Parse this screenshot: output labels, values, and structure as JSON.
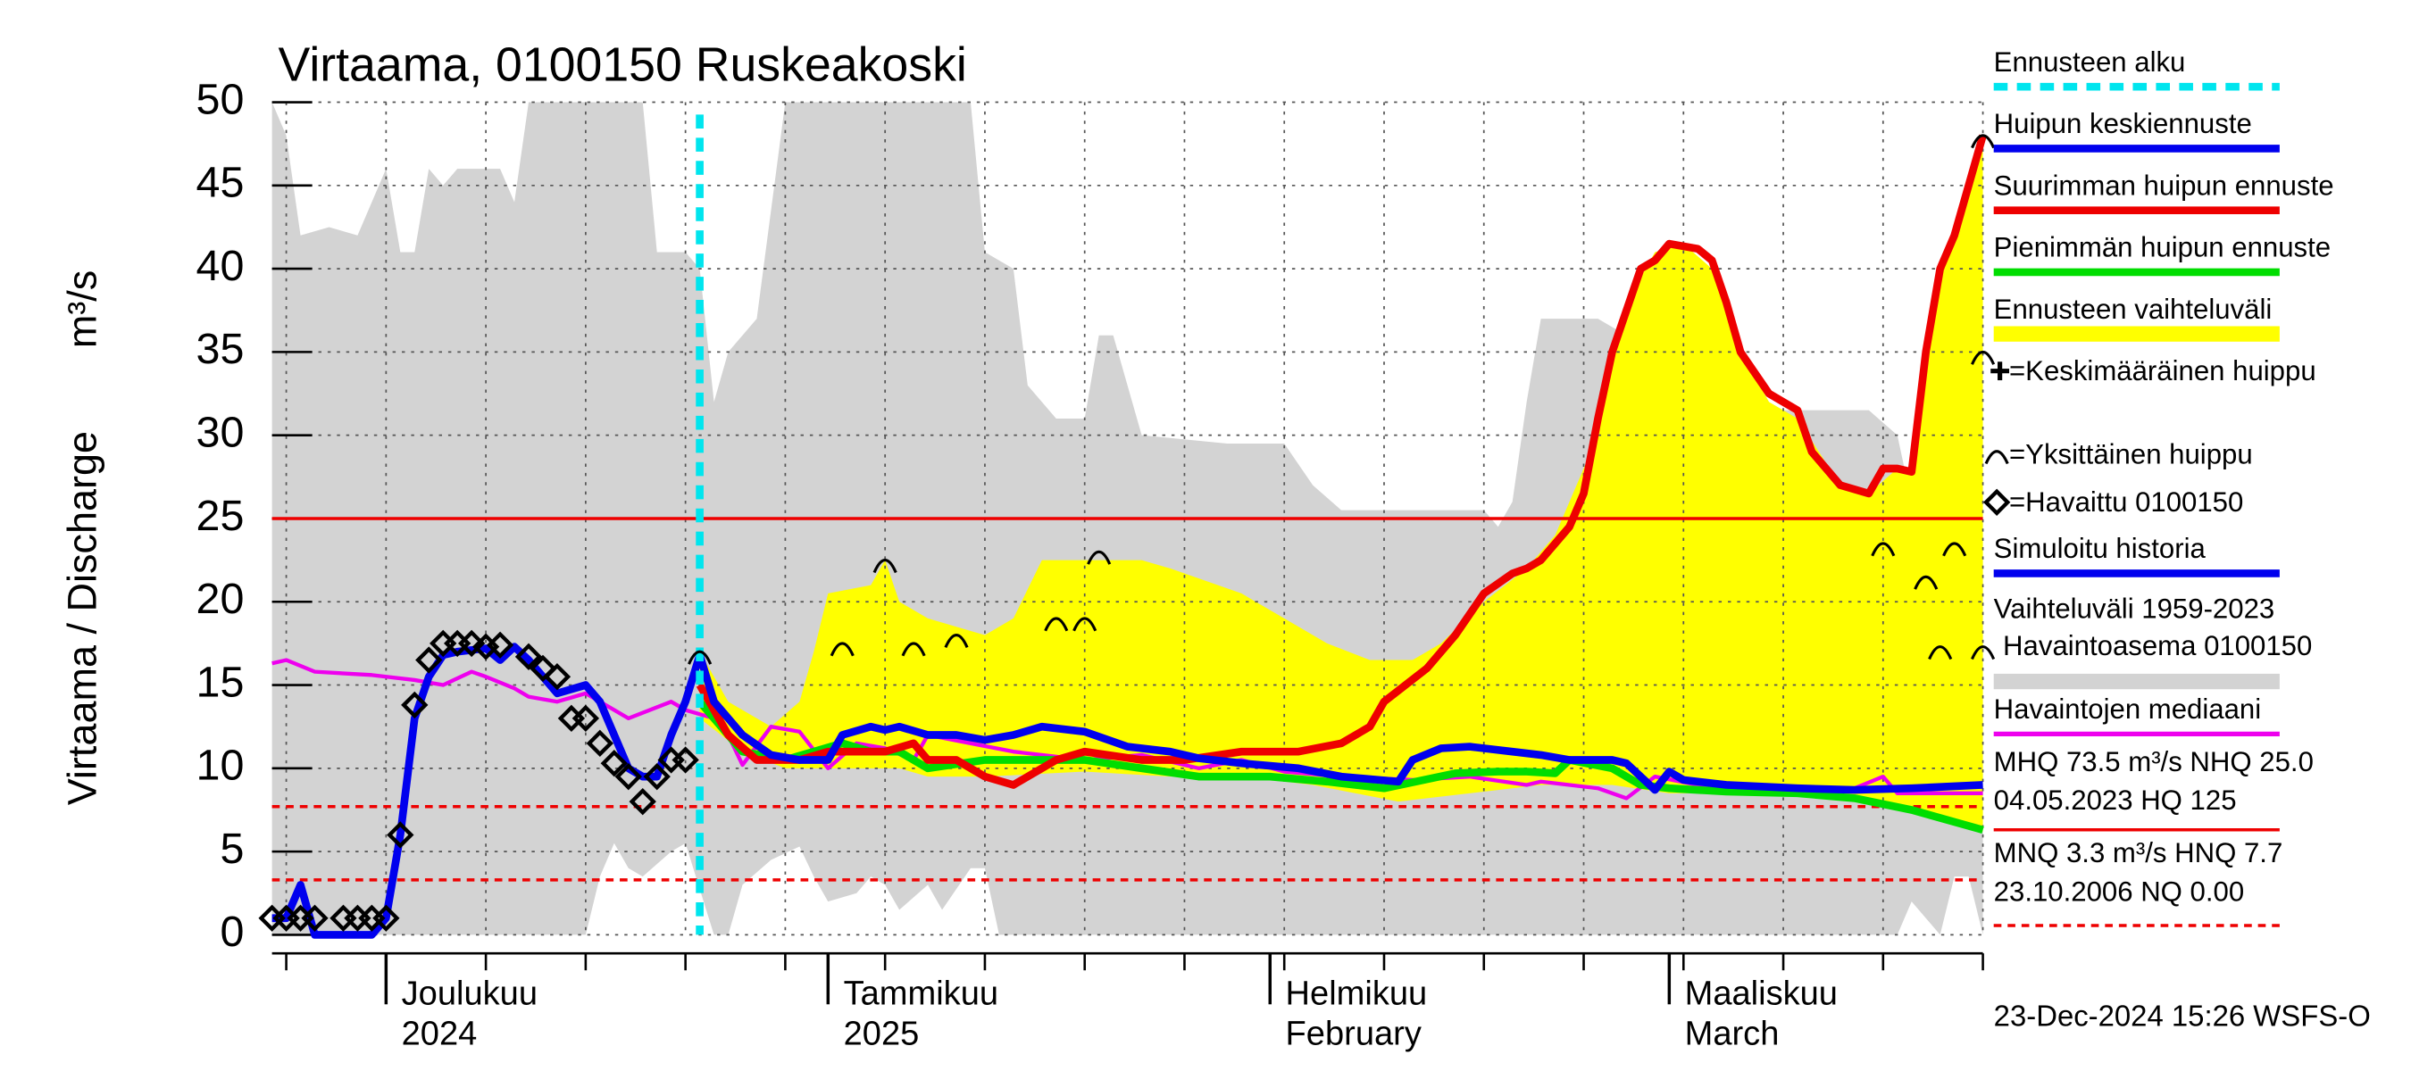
{
  "chart_data": {
    "type": "line",
    "title": "Virtaama, 0100150 Ruskeakoski",
    "ylabel": "Virtaama / Discharge",
    "yunit": "m³/s",
    "xlim": [
      0,
      120
    ],
    "ylim": [
      0,
      50
    ],
    "yticks": [
      0,
      5,
      10,
      15,
      20,
      25,
      30,
      35,
      40,
      45,
      50
    ],
    "xticks": [
      {
        "value": 8,
        "label": "Joulukuu"
      },
      {
        "value": 39,
        "label": "Tammikuu"
      },
      {
        "value": 70,
        "label": "Helmikuu"
      },
      {
        "value": 98,
        "label": "Maaliskuu"
      }
    ],
    "xtick_sublabels": [
      "2024",
      "2025",
      "February",
      "March"
    ],
    "xgrid": [
      1,
      8,
      15,
      22,
      29,
      36,
      43,
      50,
      57,
      64,
      71,
      78,
      85,
      92,
      99,
      106,
      113,
      120
    ],
    "grid": true,
    "forecast_start": {
      "name": "Ennusteen alku",
      "value": 30,
      "color": "#00e5ee"
    },
    "bands": [
      {
        "name": "Vaihteluväli 1959-2023",
        "subname": "Havaintoasema 0100150",
        "color": "#d3d3d3",
        "upper": {
          "x": [
            0,
            1,
            2,
            4,
            6,
            8,
            9,
            10,
            11,
            12,
            13,
            16,
            17,
            18,
            26,
            27,
            29,
            30,
            31,
            32,
            34,
            36,
            49,
            50,
            52,
            53,
            55,
            57,
            58,
            59,
            61,
            67,
            71,
            73,
            75,
            85,
            86,
            87,
            88,
            89,
            93,
            95,
            97,
            100,
            103,
            104,
            112,
            114,
            115,
            120
          ],
          "values": [
            50,
            48,
            42,
            42.5,
            42,
            46,
            41,
            41,
            46,
            45,
            46,
            46,
            44,
            50,
            50,
            41,
            41,
            40,
            32,
            35,
            37,
            50,
            50,
            41,
            40,
            33,
            31,
            31,
            36,
            36,
            30,
            29.5,
            29.5,
            27,
            25.5,
            25.5,
            24.5,
            26,
            32,
            37,
            37,
            36,
            37,
            37,
            33,
            31.5,
            31.5,
            30,
            26,
            25.5
          ]
        },
        "lower": {
          "x": [
            0,
            22,
            23,
            24,
            25,
            26,
            28,
            29,
            31,
            32,
            33,
            35,
            37,
            38,
            39,
            41,
            42,
            43,
            44,
            46,
            47,
            49,
            50,
            51,
            114,
            115,
            117,
            118,
            119,
            120
          ],
          "values": [
            0,
            0,
            3.5,
            5.5,
            4,
            3.5,
            5,
            5.5,
            0,
            0,
            3,
            4.5,
            5.3,
            3.5,
            2,
            2.5,
            3.5,
            3,
            1.5,
            3,
            1.5,
            4,
            4,
            0,
            0,
            2,
            0,
            3.5,
            3.5,
            0
          ]
        }
      },
      {
        "name": "Ennusteen vaihteluväli",
        "color": "#ffff00",
        "upper": {
          "x": [
            30,
            32,
            35,
            37,
            38,
            39,
            42,
            43,
            44,
            46,
            48,
            50,
            52,
            54,
            57,
            61,
            63,
            68,
            71,
            74,
            77,
            80,
            82,
            85,
            88,
            90,
            93,
            95,
            97,
            99,
            101,
            103,
            105,
            107,
            110,
            112,
            114,
            115,
            117,
            118,
            120
          ],
          "values": [
            17,
            14,
            12.5,
            14,
            17,
            20.5,
            21,
            22.5,
            20,
            19,
            18.5,
            18,
            19,
            22.5,
            22.5,
            22.5,
            22,
            20.5,
            19,
            17.5,
            16.5,
            16.5,
            17.5,
            20,
            22,
            24,
            30,
            38,
            41,
            41.5,
            40,
            35,
            32,
            31,
            27,
            26.5,
            28,
            28,
            40,
            42,
            48
          ]
        },
        "lower": {
          "x": [
            30,
            33,
            36,
            39,
            44,
            46,
            50,
            57,
            63,
            68,
            73,
            76,
            79,
            84,
            89,
            94,
            98,
            106,
            111,
            115,
            120
          ],
          "values": [
            13,
            11,
            10,
            10,
            10,
            9.5,
            9.5,
            9.8,
            9.5,
            9.5,
            9,
            8.5,
            8,
            8.5,
            9,
            9,
            8.5,
            8.5,
            8,
            7.5,
            6.2
          ]
        }
      }
    ],
    "series": [
      {
        "name": "Simuloitu historia",
        "color": "#0000ee",
        "x": [
          0,
          1,
          2,
          3,
          7,
          8,
          9,
          10,
          11,
          12,
          13,
          15,
          16,
          17,
          18,
          20,
          22,
          23,
          24,
          25,
          26,
          27,
          28,
          29,
          30
        ],
        "values": [
          1,
          1,
          3,
          0,
          0,
          1,
          6,
          13,
          15.5,
          16.8,
          17,
          17.2,
          16.5,
          17.3,
          16.5,
          14.5,
          15,
          14,
          12,
          10,
          9.5,
          9.5,
          12,
          14,
          16.8
        ]
      },
      {
        "name": "Huipun keskiennuste",
        "color": "#0000ee",
        "x": [
          30,
          31,
          33,
          35,
          37,
          39,
          40,
          42,
          43,
          44,
          46,
          48,
          50,
          52,
          54,
          57,
          60,
          63,
          65,
          68,
          72,
          75,
          79,
          80,
          82,
          84,
          87,
          89,
          91,
          94,
          95,
          96,
          97,
          98,
          99,
          102,
          107,
          111,
          115,
          120
        ],
        "values": [
          16.8,
          14,
          12,
          10.8,
          10.5,
          10.5,
          12,
          12.5,
          12.3,
          12.5,
          12,
          12,
          11.7,
          12,
          12.5,
          12.2,
          11.3,
          11,
          10.6,
          10.3,
          10,
          9.5,
          9.2,
          10.5,
          11.2,
          11.3,
          11,
          10.8,
          10.5,
          10.5,
          10.3,
          9.5,
          8.7,
          9.8,
          9.3,
          9,
          8.8,
          8.7,
          8.8,
          9
        ]
      },
      {
        "name": "Suurimman huipun ennuste",
        "color": "#ee0000",
        "x": [
          30,
          32,
          34,
          37,
          39,
          43,
          45,
          46,
          48,
          50,
          52,
          55,
          57,
          61,
          64,
          68,
          72,
          75,
          77,
          78,
          81,
          83,
          85,
          87,
          88,
          89,
          91,
          92,
          93,
          94,
          96,
          97,
          98,
          100,
          101,
          102,
          103,
          105,
          106,
          107,
          108,
          109,
          110,
          112,
          113,
          114,
          115,
          116,
          117,
          118,
          120
        ],
        "values": [
          15,
          12,
          10.5,
          10.5,
          11,
          11,
          11.5,
          10.5,
          10.5,
          9.5,
          9,
          10.5,
          11,
          10.5,
          10.5,
          11,
          11,
          11.5,
          12.5,
          14,
          16,
          18,
          20.5,
          21.7,
          22,
          22.5,
          24.5,
          26.5,
          31,
          35,
          40,
          40.5,
          41.5,
          41.2,
          40.5,
          38,
          35,
          32.5,
          32,
          31.5,
          29,
          28,
          27,
          26.5,
          28,
          28,
          27.8,
          35,
          40,
          42,
          48
        ]
      },
      {
        "name": "Pienimmän huipun ennuste",
        "color": "#00dd00",
        "x": [
          30,
          33,
          36,
          38,
          40,
          42,
          44,
          46,
          50,
          57,
          61,
          65,
          70,
          74,
          78,
          83,
          86,
          88,
          90,
          91,
          94,
          96,
          98,
          102,
          107,
          111,
          115,
          120
        ],
        "values": [
          14,
          11,
          10.5,
          11,
          11.5,
          11,
          11,
          10,
          10.5,
          10.5,
          10,
          9.5,
          9.5,
          9.2,
          8.8,
          9.7,
          9.8,
          9.8,
          9.7,
          10.5,
          10,
          9,
          8.8,
          8.6,
          8.5,
          8.2,
          7.5,
          6.3
        ]
      },
      {
        "name": "Havaintojen mediaani",
        "color": "#ee00ee",
        "x": [
          0,
          1,
          3,
          7,
          10,
          12,
          14,
          15,
          17,
          18,
          20,
          22,
          24,
          25,
          28,
          29,
          31,
          32,
          33,
          35,
          37,
          39,
          41,
          43,
          45,
          46,
          49,
          52,
          57,
          61,
          65,
          68,
          71,
          75,
          80,
          84,
          88,
          89,
          93,
          95,
          97,
          100,
          106,
          111,
          113,
          114,
          120
        ],
        "values": [
          16.3,
          16.5,
          15.8,
          15.6,
          15.3,
          15,
          15.8,
          15.5,
          14.8,
          14.3,
          14,
          14.5,
          13.5,
          13,
          14,
          13.5,
          13,
          12,
          10.2,
          12.5,
          12.2,
          10,
          11.5,
          11.2,
          10.5,
          12,
          11.5,
          11,
          10.5,
          10.8,
          10,
          10.5,
          9.8,
          9.5,
          9.3,
          9.5,
          9,
          9.2,
          8.8,
          8.2,
          9.5,
          9,
          8.5,
          8.8,
          9.5,
          8.5,
          8.5
        ]
      }
    ],
    "observed": {
      "name": "=Havaittu 0100150",
      "color": "#000000",
      "x": [
        0,
        1,
        2,
        3,
        5,
        6,
        7,
        8,
        9,
        10,
        11,
        12,
        13,
        14,
        15,
        16,
        18,
        19,
        20,
        21,
        22,
        23,
        24,
        25,
        26,
        27,
        28,
        29
      ],
      "values": [
        1,
        1,
        1,
        1,
        1,
        1,
        1,
        1,
        6,
        13.8,
        16.5,
        17.5,
        17.5,
        17.5,
        17.3,
        17.4,
        16.7,
        16,
        15.5,
        13,
        13,
        11.5,
        10.3,
        9.5,
        8,
        9.5,
        10.5,
        10.5
      ]
    },
    "peaks": {
      "name": "=Yksittäinen huippu",
      "x": [
        30,
        40,
        43,
        45,
        48,
        55,
        57,
        58,
        120,
        120,
        113,
        116,
        117,
        118,
        120
      ],
      "values": [
        17,
        17.5,
        22.5,
        17.5,
        18,
        19,
        19,
        23,
        48,
        35,
        23.5,
        21.5,
        17.3,
        23.5,
        17.3
      ]
    },
    "mean_peak": {
      "name": "=Keskimääräinen huippu"
    },
    "hlines": [
      {
        "value": 25,
        "color": "#ee0000",
        "dashed": false
      },
      {
        "value": 7.7,
        "color": "#ee0000",
        "dashed": true
      },
      {
        "value": 3.3,
        "color": "#ee0000",
        "dashed": true
      }
    ],
    "stats": [
      "MHQ 73.5 m³/s NHQ 25.0",
      "04.05.2023 HQ  125",
      "MNQ  3.3 m³/s HNQ  7.7",
      "23.10.2006 NQ 0.00"
    ],
    "timestamp": "23-Dec-2024 15:26 WSFS-O"
  }
}
